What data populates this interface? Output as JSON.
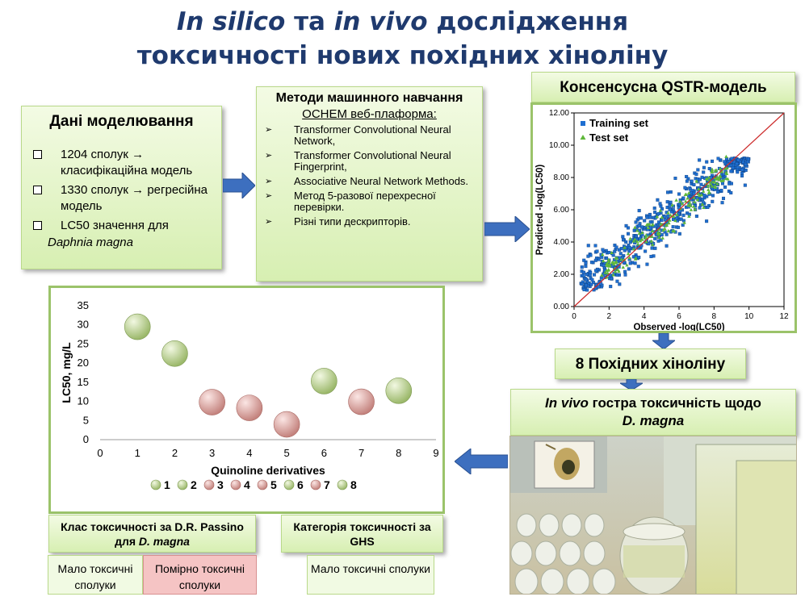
{
  "title": {
    "line1_italic_a": "In silico",
    "line1_mid": " та ",
    "line1_italic_b": "in vivo",
    "line1_end": " дослідження",
    "line2": "токсичності нових похідних хіноліну"
  },
  "modeling": {
    "header": "Дані моделювання",
    "items": [
      "1204 сполук → класифікаційна модель",
      "1330 сполук → регресійна модель",
      "LC50 значення для"
    ],
    "species": "Daphnia magna"
  },
  "ml": {
    "header": "Методи машинного навчання",
    "platform": "OCHEM веб-плаформа:",
    "items": [
      "Transformer Convolutional Neural Network,",
      "Transformer Convolutional Neural Fingerprint,",
      "Associative Neural Network Methods.",
      "Метод 5-разової перехресної перевірки.",
      "Різні типи дескрипторів."
    ]
  },
  "qstr": {
    "title": "Консенсусна QSTR-модель"
  },
  "derivatives": {
    "label": "8 Похідних хіноліну"
  },
  "invivo": {
    "italic": "In vivo",
    "rest": " гостра токсичність щодо",
    "species": "D. magna"
  },
  "classification": {
    "passino_prefix": "Клас токсичності за  D.R. Passino для ",
    "passino_species": "D. magna",
    "ghs": "Категорія токсичності за GHS",
    "low": "Мало токсичні сполуки",
    "moderate": "Помірно токсичні сполуки",
    "ghs_low": "Мало токсичні сполуки"
  },
  "colors": {
    "title": "#1f3a6e",
    "arrow": "#3d6fbf",
    "frame": "#9bc36a",
    "training": "#1f6fd1",
    "test": "#5fb83a",
    "diag": "#cc2a2a",
    "bubble_green": "#9bb86a",
    "bubble_red": "#c4837e"
  },
  "chart_data": [
    {
      "type": "scatter",
      "title": "",
      "xlabel": "Observed -log(LC50)",
      "ylabel": "Predicted -log(LC50)",
      "xlim": [
        0,
        12
      ],
      "ylim": [
        0,
        12
      ],
      "x_ticks": [
        "0",
        "2",
        "4",
        "6",
        "8",
        "10",
        "12"
      ],
      "y_ticks": [
        "0.00",
        "2.00",
        "4.00",
        "6.00",
        "8.00",
        "10.00",
        "12.00"
      ],
      "legend_position": "top-left",
      "series": [
        {
          "name": "Training set",
          "marker": "square",
          "color": "#1f6fd1",
          "note_points": "dense cloud of ~1200 points along y=x, x from 0.5 to 10, y from 1 to 9.2"
        },
        {
          "name": "Test set",
          "marker": "triangle",
          "color": "#5fb83a"
        }
      ]
    },
    {
      "type": "scatter",
      "xlabel": "Quinoline derivatives",
      "ylabel": "LC50, mg/L",
      "xlim": [
        0,
        9
      ],
      "ylim": [
        0,
        35
      ],
      "x_ticks": [
        "0",
        "1",
        "2",
        "3",
        "4",
        "5",
        "6",
        "7",
        "8",
        "9"
      ],
      "y_ticks": [
        "0",
        "5",
        "10",
        "15",
        "20",
        "25",
        "30",
        "35"
      ],
      "legend_position": "bottom",
      "points": [
        {
          "x": 1,
          "y": 29.5,
          "class": "green",
          "label": "1"
        },
        {
          "x": 2,
          "y": 22.5,
          "class": "green",
          "label": "2"
        },
        {
          "x": 3,
          "y": 9.8,
          "class": "red",
          "label": "3"
        },
        {
          "x": 4,
          "y": 8.3,
          "class": "red",
          "label": "4"
        },
        {
          "x": 5,
          "y": 4.0,
          "class": "red",
          "label": "5"
        },
        {
          "x": 6,
          "y": 15.3,
          "class": "green",
          "label": "6"
        },
        {
          "x": 7,
          "y": 9.9,
          "class": "red",
          "label": "7"
        },
        {
          "x": 8,
          "y": 12.8,
          "class": "green",
          "label": "8"
        }
      ]
    }
  ]
}
